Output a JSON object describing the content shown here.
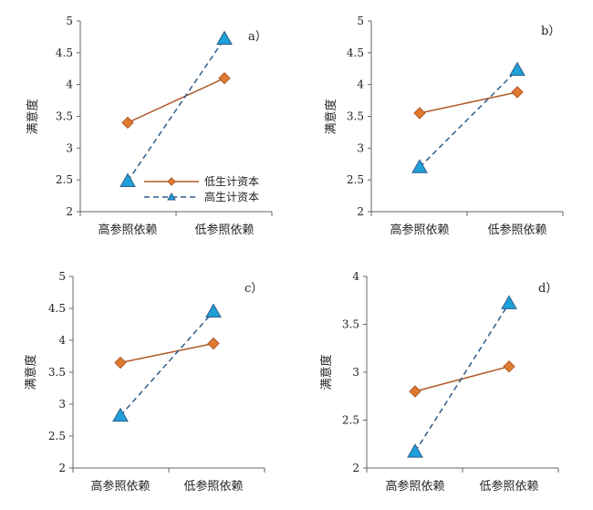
{
  "colors": {
    "low_series": "#b05a2a",
    "low_marker": "#e07a2e",
    "high_series": "#2f5d8a",
    "high_marker": "#1ea0d8",
    "axis": "#666666"
  },
  "legend": {
    "items": [
      "低生计资本",
      "高生计资本"
    ]
  },
  "chart_data": [
    {
      "type": "line",
      "panel_label": "a）",
      "categories": [
        "高参照依赖",
        "低参照依赖"
      ],
      "ylabel": "满意度",
      "ylim": [
        2,
        5
      ],
      "yticks": [
        2,
        2.5,
        3,
        3.5,
        4,
        4.5,
        5
      ],
      "ytick_labels": [
        "2",
        "2.5",
        "3",
        "3.5",
        "4",
        "4.5",
        "5"
      ],
      "series": [
        {
          "name": "低生计资本",
          "values": [
            3.4,
            4.1
          ],
          "marker": "diamond",
          "dash": false
        },
        {
          "name": "高生计资本",
          "values": [
            2.48,
            4.72
          ],
          "marker": "triangle",
          "dash": true
        }
      ],
      "show_legend": true
    },
    {
      "type": "line",
      "panel_label": "b）",
      "categories": [
        "高参照依赖",
        "低参照依赖"
      ],
      "ylabel": "满意度",
      "ylim": [
        2,
        5
      ],
      "yticks": [
        2,
        2.5,
        3,
        3.5,
        4,
        4.5,
        5
      ],
      "ytick_labels": [
        "2",
        "2.5",
        "3",
        "3.5",
        "4",
        "4.5",
        "5"
      ],
      "series": [
        {
          "name": "低生计资本",
          "values": [
            3.55,
            3.88
          ],
          "marker": "diamond",
          "dash": false
        },
        {
          "name": "高生计资本",
          "values": [
            2.7,
            4.23
          ],
          "marker": "triangle",
          "dash": true
        }
      ],
      "show_legend": false
    },
    {
      "type": "line",
      "panel_label": "c）",
      "categories": [
        "高参照依赖",
        "低参照依赖"
      ],
      "ylabel": "满意度",
      "ylim": [
        2,
        5
      ],
      "yticks": [
        2,
        2.5,
        3,
        3.5,
        4,
        4.5,
        5
      ],
      "ytick_labels": [
        "2",
        "2.5",
        "3",
        "3.5",
        "4",
        "4.5",
        "5"
      ],
      "series": [
        {
          "name": "低生计资本",
          "values": [
            3.65,
            3.95
          ],
          "marker": "diamond",
          "dash": false
        },
        {
          "name": "高生计资本",
          "values": [
            2.82,
            4.45
          ],
          "marker": "triangle",
          "dash": true
        }
      ],
      "show_legend": false
    },
    {
      "type": "line",
      "panel_label": "d）",
      "categories": [
        "高参照依赖",
        "低参照依赖"
      ],
      "ylabel": "满意度",
      "ylim": [
        2,
        4
      ],
      "yticks": [
        2,
        2.5,
        3,
        3.5,
        4
      ],
      "ytick_labels": [
        "2",
        "2.5",
        "3",
        "3.5",
        "4"
      ],
      "series": [
        {
          "name": "低生计资本",
          "values": [
            2.8,
            3.06
          ],
          "marker": "diamond",
          "dash": false
        },
        {
          "name": "高生计资本",
          "values": [
            2.17,
            3.72
          ],
          "marker": "triangle",
          "dash": true
        }
      ],
      "show_legend": false
    }
  ]
}
